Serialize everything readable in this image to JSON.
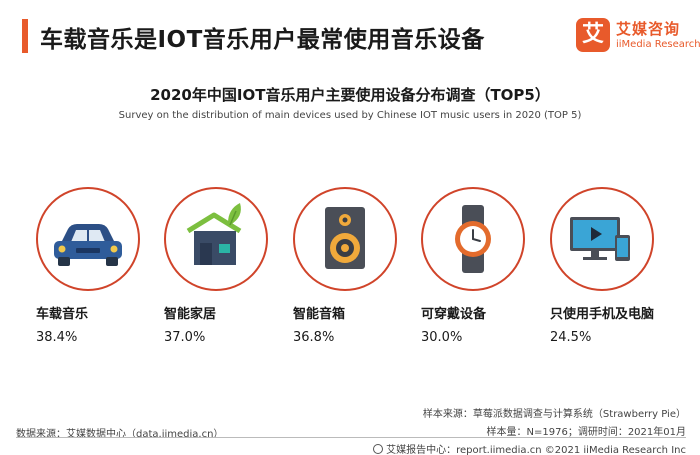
{
  "header": {
    "title": "车载音乐是IOT音乐用户最常使用音乐设备",
    "accent_color": "#e85a2b"
  },
  "logo": {
    "mark": "艾",
    "name_cn": "艾媒咨询",
    "name_en": "iiMedia Research"
  },
  "chart_data": {
    "type": "bar",
    "title": "2020年中国IOT音乐用户主要使用设备分布调查（TOP5）",
    "subtitle": "Survey on the distribution of main devices used by Chinese IOT music users in 2020 (TOP 5)",
    "categories": [
      "车载音乐",
      "智能家居",
      "智能音箱",
      "可穿戴设备",
      "只使用手机及电脑"
    ],
    "values": [
      38.4,
      37.0,
      36.8,
      30.0,
      24.5
    ],
    "value_labels": [
      "38.4%",
      "37.0%",
      "36.8%",
      "30.0%",
      "24.5%"
    ],
    "icons": [
      "car-icon",
      "smart-home-icon",
      "speaker-icon",
      "smartwatch-icon",
      "monitor-phone-icon"
    ],
    "circle_color": "#d0442a"
  },
  "footer": {
    "sample_source": "样本来源：草莓派数据调查与计算系统（Strawberry Pie）",
    "data_source": "数据来源：艾媒数据中心（data.iimedia.cn）",
    "sample_info": "样本量：N=1976；调研时间：2021年01月",
    "report_center": "艾媒报告中心：report.iimedia.cn ©2021  iiMedia Research  Inc"
  }
}
